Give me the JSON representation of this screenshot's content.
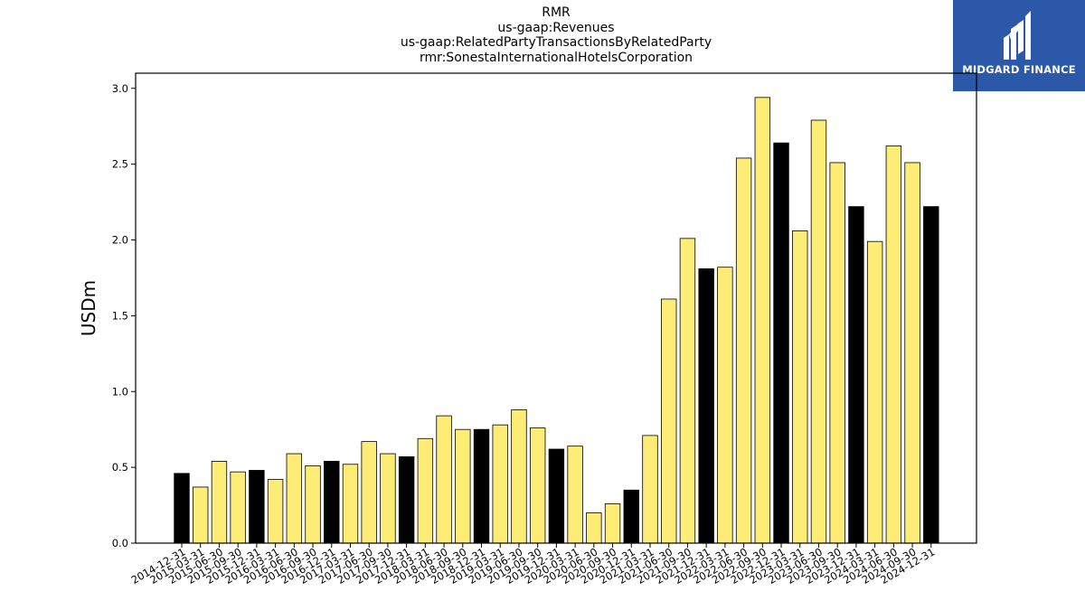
{
  "header": {
    "title_lines": [
      "RMR",
      "us-gaap:Revenues",
      "us-gaap:RelatedPartyTransactionsByRelatedParty",
      "rmr:SonestaInternationalHotelsCorporation"
    ]
  },
  "logo": {
    "text": "MIDGARD FINANCE",
    "icon": "midgard-logo-icon",
    "background": "#2b58a8"
  },
  "colors": {
    "highlight": "#000000",
    "default": "#fdec76",
    "edge": "#000000"
  },
  "chart_data": {
    "type": "bar",
    "title": "",
    "xlabel": "",
    "ylabel": "USDm",
    "ylim": [
      0,
      3.1
    ],
    "yticks": [
      "0.0",
      "0.5",
      "1.0",
      "1.5",
      "2.0",
      "2.5",
      "3.0"
    ],
    "grid": false,
    "categories": [
      "2014-12-31",
      "2015-03-31",
      "2015-06-30",
      "2015-09-30",
      "2015-12-31",
      "2016-03-31",
      "2016-06-30",
      "2016-09-30",
      "2016-12-31",
      "2017-03-31",
      "2017-06-30",
      "2017-09-30",
      "2017-12-31",
      "2018-03-31",
      "2018-06-30",
      "2018-09-30",
      "2018-12-31",
      "2019-03-31",
      "2019-06-30",
      "2019-09-30",
      "2019-12-31",
      "2020-03-31",
      "2020-06-30",
      "2020-09-30",
      "2020-12-31",
      "2021-03-31",
      "2021-06-30",
      "2021-09-30",
      "2021-12-31",
      "2022-03-31",
      "2022-06-30",
      "2022-09-30",
      "2022-12-31",
      "2023-03-31",
      "2023-06-30",
      "2023-09-30",
      "2023-12-31",
      "2024-03-31",
      "2024-06-30",
      "2024-09-30",
      "2024-12-31"
    ],
    "values": [
      0.46,
      0.37,
      0.54,
      0.47,
      0.48,
      0.42,
      0.59,
      0.51,
      0.54,
      0.52,
      0.67,
      0.59,
      0.57,
      0.69,
      0.84,
      0.75,
      0.75,
      0.78,
      0.88,
      0.76,
      0.62,
      0.64,
      0.2,
      0.26,
      0.35,
      0.71,
      1.61,
      2.01,
      1.81,
      1.82,
      2.54,
      2.94,
      2.64,
      2.06,
      2.79,
      2.51,
      2.22,
      1.99,
      2.62,
      2.51,
      2.22
    ],
    "highlighted": [
      "2014-12-31",
      "2015-12-31",
      "2016-12-31",
      "2017-12-31",
      "2018-12-31",
      "2019-12-31",
      "2020-12-31",
      "2021-12-31",
      "2022-12-31",
      "2023-12-31",
      "2024-12-31"
    ]
  }
}
